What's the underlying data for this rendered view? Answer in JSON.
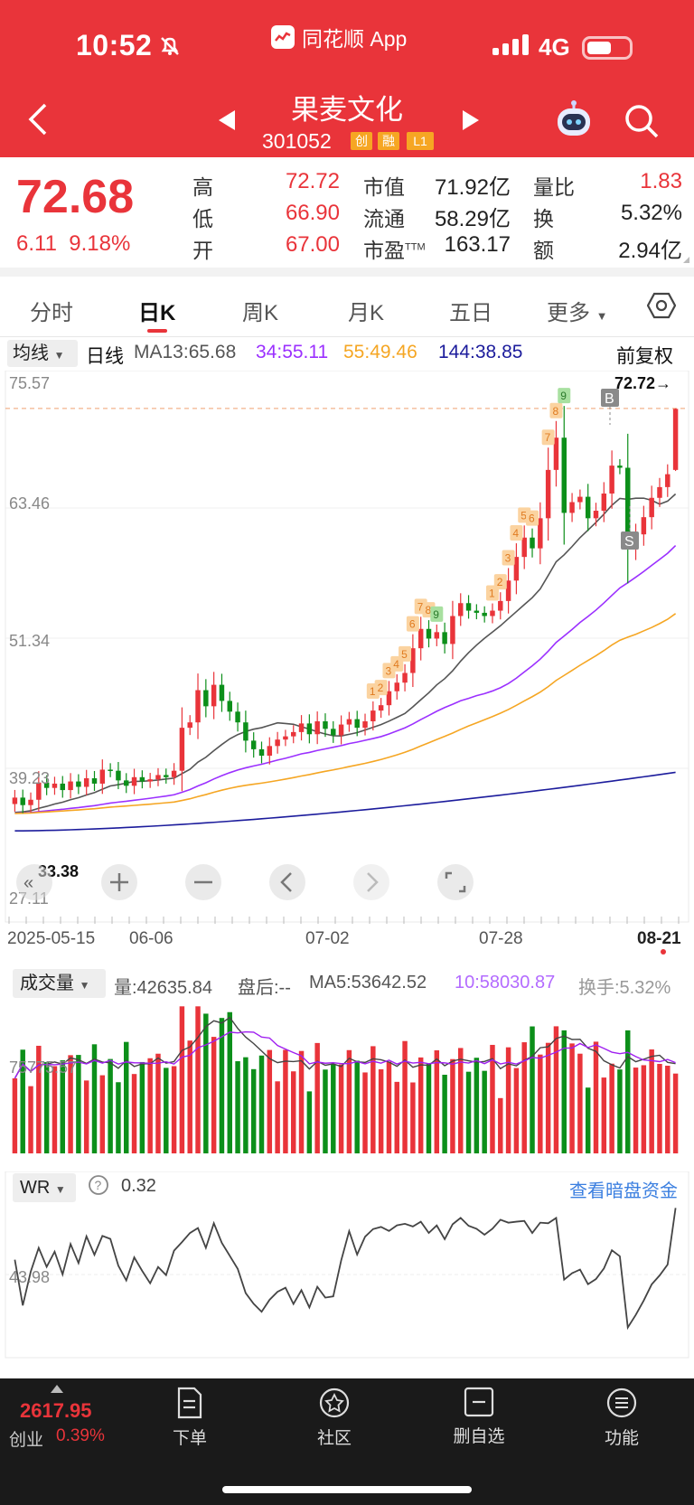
{
  "status_bar": {
    "time": "10:52",
    "app": "同花顺 App",
    "network": "4G"
  },
  "header": {
    "stock_name": "果麦文化",
    "stock_code": "301052",
    "tags": [
      "创",
      "融",
      "L1"
    ]
  },
  "quote": {
    "price": "72.68",
    "change": "6.11",
    "change_pct": "9.18%",
    "high_label": "高",
    "high": "72.72",
    "low_label": "低",
    "low": "66.90",
    "open_label": "开",
    "open": "67.00",
    "mcap_label": "市值",
    "mcap": "71.92亿",
    "float_label": "流通",
    "float": "58.29亿",
    "pe_label": "市盈",
    "pe_sup": "TTM",
    "pe": "163.17",
    "vr_label": "量比",
    "vr": "1.83",
    "turn_label": "换",
    "turn": "5.32%",
    "amt_label": "额",
    "amt": "2.94亿"
  },
  "tabs": [
    "分时",
    "日K",
    "周K",
    "月K",
    "五日",
    "更多"
  ],
  "ma_row": {
    "select": "均线",
    "period": "日线",
    "ma13": "MA13:65.68",
    "ma34": "34:55.11",
    "ma55": "55:49.46",
    "ma144": "144:38.85",
    "adjust": "前复权"
  },
  "kchart": {
    "y_ticks": [
      "75.57",
      "63.46",
      "51.34",
      "39.23",
      "27.11"
    ],
    "high_marker": "72.72→",
    "low_marker": "33.38",
    "buy_sign": "B",
    "sell_sign": "S",
    "dates": [
      "2025-05-15",
      "06-06",
      "07-02",
      "07-28",
      "08-21"
    ],
    "colors": {
      "up": "#e9343a",
      "down": "#0c8f1a",
      "ma13": "#555555",
      "ma34": "#9b30ff",
      "ma55": "#f5a623",
      "ma144": "#1c1c9c"
    }
  },
  "volume": {
    "select": "成交量",
    "vol": "量:42635.84",
    "after": "盘后:--",
    "ma5": "MA5:53642.52",
    "ma10": "10:58030.87",
    "turnover": "换手:5.32%",
    "axis_label": "75775.57"
  },
  "wr": {
    "select": "WR",
    "value": "0.32",
    "link": "查看暗盘资金",
    "axis_label": "43.98"
  },
  "bottom": {
    "index_value": "2617.95",
    "index_name": "创业",
    "index_pct": "0.39%",
    "nav": [
      "下单",
      "社区",
      "删自选",
      "功能"
    ]
  },
  "chart_data": {
    "type": "candlestick",
    "title": "果麦文化 日K",
    "ylim": [
      27.11,
      75.57
    ],
    "x_start": "2025-05-15",
    "x_end": "08-21",
    "last": {
      "open": 67.0,
      "high": 72.72,
      "low": 66.9,
      "close": 72.68
    },
    "close": [
      36.5,
      35.8,
      36.3,
      37.9,
      37.4,
      37.8,
      37.2,
      38.0,
      37.5,
      38.3,
      37.8,
      39.1,
      39.0,
      38.1,
      37.6,
      38.4,
      38.0,
      38.2,
      38.6,
      38.4,
      39.0,
      43.0,
      43.5,
      46.5,
      45.0,
      47.0,
      45.5,
      44.5,
      43.5,
      41.8,
      41.0,
      40.4,
      41.3,
      41.9,
      42.2,
      42.6,
      43.4,
      42.4,
      43.6,
      42.9,
      42.3,
      43.3,
      43.8,
      43.0,
      43.6,
      44.6,
      45.1,
      46.4,
      47.2,
      48.1,
      50.4,
      52.2,
      51.3,
      51.9,
      50.8,
      53.4,
      54.6,
      53.9,
      53.7,
      53.4,
      53.9,
      54.8,
      56.7,
      58.9,
      60.7,
      59.7,
      62.5,
      67.0,
      70.0,
      63.0,
      64.0,
      64.5,
      62.5,
      63.2,
      64.8,
      67.4,
      67.2,
      59.6,
      61.0,
      62.6,
      64.4,
      65.4,
      66.6,
      72.68
    ],
    "volume_desc": "daily volume bars with MA5 and MA10",
    "wr_desc": "Williams %R oscillator"
  }
}
